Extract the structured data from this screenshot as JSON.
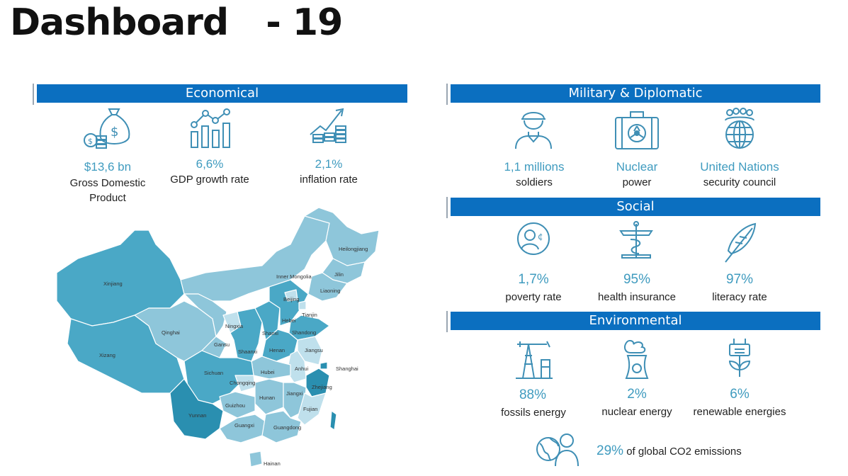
{
  "header": {
    "title": "Dashboard",
    "number": "- 19"
  },
  "sections": {
    "economical": "Economical",
    "military": "Military & Diplomatic",
    "social": "Social",
    "environmental": "Environmental"
  },
  "economical": {
    "gdp": {
      "value": "$13,6 bn",
      "label": "Gross Domestic Product",
      "icon": "money-bag-icon"
    },
    "growth": {
      "value": "6,6%",
      "label": "GDP growth rate",
      "icon": "growth-chart-icon"
    },
    "inflation": {
      "value": "2,1%",
      "label": "inflation rate",
      "icon": "inflation-icon"
    }
  },
  "military": {
    "soldiers": {
      "value": "1,1 millions",
      "label": "soldiers",
      "icon": "soldier-icon"
    },
    "nuclear": {
      "value": "Nuclear",
      "label": "power",
      "icon": "nuclear-case-icon"
    },
    "un": {
      "value": "United Nations",
      "label": "security council",
      "icon": "united-nations-icon"
    }
  },
  "social": {
    "poverty": {
      "value": "1,7%",
      "label": "poverty rate",
      "icon": "poverty-icon"
    },
    "health": {
      "value": "95%",
      "label": "health insurance",
      "icon": "health-icon"
    },
    "literacy": {
      "value": "97%",
      "label": "literacy rate",
      "icon": "quill-icon"
    }
  },
  "environmental": {
    "fossils": {
      "value": "88%",
      "label": "fossils energy",
      "icon": "oil-pump-icon"
    },
    "nuclear": {
      "value": "2%",
      "label": "nuclear energy",
      "icon": "nuclear-plant-icon"
    },
    "renewable": {
      "value": "6%",
      "label": "renewable energies",
      "icon": "plug-leaf-icon"
    },
    "co2": {
      "value": "29%",
      "label": "of global CO2 emissions",
      "icon": "globe-person-icon"
    }
  },
  "map": {
    "provinces": [
      "Heilongjiang",
      "Jilin",
      "Liaoning",
      "Inner Mongolia",
      "Beijing",
      "Tianjin",
      "Hebei",
      "Xinjiang",
      "Qinghai",
      "Ningxia",
      "Shanxi",
      "Shandong",
      "Gansu",
      "Shaanxi",
      "Henan",
      "Jiangsu",
      "Xizang",
      "Anhui",
      "Shanghai",
      "Sichuan",
      "Hubei",
      "Chongqing",
      "Zhejiang",
      "Hunan",
      "Jiangxi",
      "Guizhou",
      "Fujian",
      "Yunnan",
      "Guangxi",
      "Guangdong",
      "Hainan"
    ],
    "colors": {
      "dark": "#2a8fb0",
      "mid": "#4aa8c6",
      "light": "#8ec6da",
      "pale": "#bfe0ec"
    }
  }
}
